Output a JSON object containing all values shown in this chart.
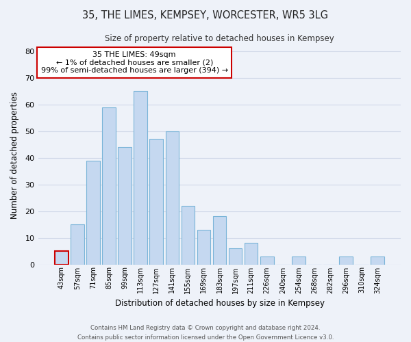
{
  "title": "35, THE LIMES, KEMPSEY, WORCESTER, WR5 3LG",
  "subtitle": "Size of property relative to detached houses in Kempsey",
  "xlabel": "Distribution of detached houses by size in Kempsey",
  "ylabel": "Number of detached properties",
  "bar_labels": [
    "43sqm",
    "57sqm",
    "71sqm",
    "85sqm",
    "99sqm",
    "113sqm",
    "127sqm",
    "141sqm",
    "155sqm",
    "169sqm",
    "183sqm",
    "197sqm",
    "211sqm",
    "226sqm",
    "240sqm",
    "254sqm",
    "268sqm",
    "282sqm",
    "296sqm",
    "310sqm",
    "324sqm"
  ],
  "bar_values": [
    5,
    15,
    39,
    59,
    44,
    65,
    47,
    50,
    22,
    13,
    18,
    6,
    8,
    3,
    0,
    3,
    0,
    0,
    3,
    0,
    3
  ],
  "bar_color": "#c5d8f0",
  "bar_edge_color": "#7ab4d8",
  "highlight_bar_index": 0,
  "highlight_bar_edge_color": "#cc0000",
  "annotation_box_text": "35 THE LIMES: 49sqm\n← 1% of detached houses are smaller (2)\n99% of semi-detached houses are larger (394) →",
  "annotation_box_edge_color": "#cc0000",
  "annotation_box_facecolor": "#ffffff",
  "ylim": [
    0,
    82
  ],
  "yticks": [
    0,
    10,
    20,
    30,
    40,
    50,
    60,
    70,
    80
  ],
  "grid_color": "#d0d8e8",
  "background_color": "#eef2f9",
  "footer_line1": "Contains HM Land Registry data © Crown copyright and database right 2024.",
  "footer_line2": "Contains public sector information licensed under the Open Government Licence v3.0."
}
